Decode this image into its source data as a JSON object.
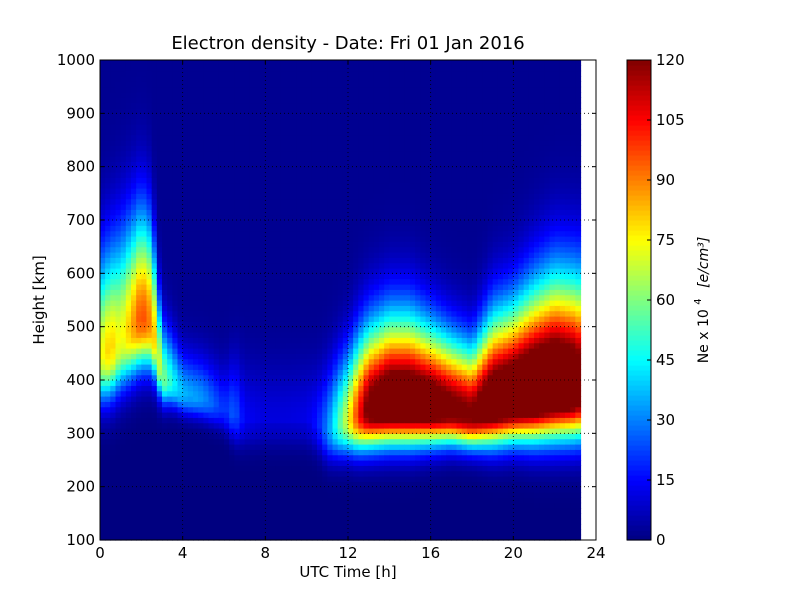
{
  "chart_data": {
    "type": "heatmap",
    "title": "Electron density - Date: Fri 01 Jan 2016",
    "xlabel": "UTC Time [h]",
    "ylabel": "Height [km]",
    "xlim": [
      0,
      24
    ],
    "ylim": [
      100,
      1000
    ],
    "x_ticks": [
      0,
      4,
      8,
      12,
      16,
      20,
      24
    ],
    "y_ticks": [
      100,
      200,
      300,
      400,
      500,
      600,
      700,
      800,
      900,
      1000
    ],
    "grid": true,
    "data_extent_hours": [
      0,
      23.25
    ],
    "colormap": "jet",
    "colorbar": {
      "label_prefix": "Ne x 10",
      "label_exponent": "4",
      "label_units": "[e/cm³]",
      "vmin": 0,
      "vmax": 120,
      "ticks": [
        0,
        15,
        30,
        45,
        60,
        75,
        90,
        105,
        120
      ]
    },
    "profile_params": [
      {
        "t": 0.0,
        "hmax": 440,
        "peak": 70,
        "width": 140
      },
      {
        "t": 0.5,
        "hmax": 450,
        "peak": 80,
        "width": 145
      },
      {
        "t": 1.0,
        "hmax": 470,
        "peak": 70,
        "width": 150
      },
      {
        "t": 1.5,
        "hmax": 490,
        "peak": 82,
        "width": 150
      },
      {
        "t": 2.0,
        "hmax": 510,
        "peak": 96,
        "width": 150
      },
      {
        "t": 2.5,
        "hmax": 500,
        "peak": 86,
        "width": 140
      },
      {
        "t": 3.0,
        "hmax": 400,
        "peak": 60,
        "width": 80
      },
      {
        "t": 3.5,
        "hmax": 390,
        "peak": 45,
        "width": 70
      },
      {
        "t": 4.0,
        "hmax": 370,
        "peak": 35,
        "width": 60
      },
      {
        "t": 5.0,
        "hmax": 360,
        "peak": 30,
        "width": 60
      },
      {
        "t": 6.0,
        "hmax": 340,
        "peak": 18,
        "width": 60
      },
      {
        "t": 6.5,
        "hmax": 330,
        "peak": 24,
        "width": 80
      },
      {
        "t": 7.0,
        "hmax": 320,
        "peak": 12,
        "width": 80
      },
      {
        "t": 8.0,
        "hmax": 320,
        "peak": 9,
        "width": 80
      },
      {
        "t": 9.0,
        "hmax": 320,
        "peak": 9,
        "width": 80
      },
      {
        "t": 10.0,
        "hmax": 320,
        "peak": 10,
        "width": 80
      },
      {
        "t": 10.5,
        "hmax": 310,
        "peak": 15,
        "width": 80
      },
      {
        "t": 11.0,
        "hmax": 300,
        "peak": 28,
        "width": 90
      },
      {
        "t": 12.0,
        "hmax": 320,
        "peak": 70,
        "width": 100
      },
      {
        "t": 12.5,
        "hmax": 330,
        "peak": 100,
        "width": 110
      },
      {
        "t": 13.0,
        "hmax": 340,
        "peak": 125,
        "width": 115
      },
      {
        "t": 14.0,
        "hmax": 350,
        "peak": 140,
        "width": 120
      },
      {
        "t": 15.0,
        "hmax": 350,
        "peak": 140,
        "width": 120
      },
      {
        "t": 16.0,
        "hmax": 345,
        "peak": 135,
        "width": 110
      },
      {
        "t": 17.0,
        "hmax": 340,
        "peak": 125,
        "width": 100
      },
      {
        "t": 18.0,
        "hmax": 330,
        "peak": 120,
        "width": 95
      },
      {
        "t": 19.0,
        "hmax": 350,
        "peak": 140,
        "width": 120
      },
      {
        "t": 20.0,
        "hmax": 360,
        "peak": 145,
        "width": 125
      },
      {
        "t": 21.0,
        "hmax": 370,
        "peak": 150,
        "width": 140
      },
      {
        "t": 22.0,
        "hmax": 380,
        "peak": 150,
        "width": 150
      },
      {
        "t": 23.0,
        "hmax": 380,
        "peak": 140,
        "width": 150
      },
      {
        "t": 23.25,
        "hmax": 380,
        "peak": 130,
        "width": 150
      }
    ]
  }
}
